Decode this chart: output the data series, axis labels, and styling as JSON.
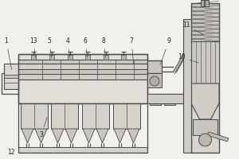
{
  "bg_color": "#f2f0ed",
  "line_color": "#4a4a4a",
  "lw": 0.6,
  "fig_w": 3.0,
  "fig_h": 2.0,
  "dpi": 100
}
